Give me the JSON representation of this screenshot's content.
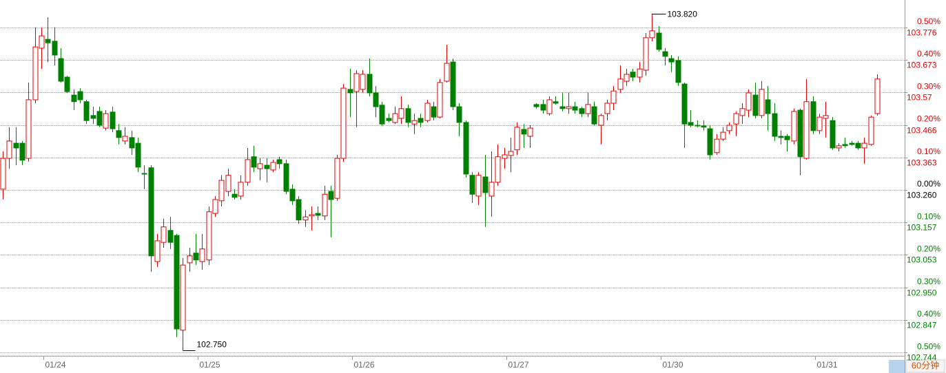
{
  "chart_data": {
    "type": "candlestick",
    "period": "60分钟",
    "high_label": "103.820",
    "low_label": "102.750",
    "up_color": "#e00000",
    "down_color": "#008000",
    "grid": true,
    "ylim": [
      102.737,
      103.863
    ],
    "yticks": [
      103.776,
      103.673,
      103.57,
      103.466,
      103.363,
      {
        "value": 103.26,
        "label": "103.260"
      },
      103.157,
      103.053,
      {
        "value": 102.95,
        "label": "102.950"
      },
      102.847,
      102.744
    ],
    "y2lim": [
      -0.506,
      0.584
    ],
    "y2ticks": [
      {
        "value": 0.5,
        "label": "0.50%"
      },
      {
        "value": 0.4,
        "label": "0.40%"
      },
      {
        "value": 0.3,
        "label": "0.30%"
      },
      {
        "value": 0.2,
        "label": "0.20%"
      },
      {
        "value": 0.1,
        "label": "0.10%"
      },
      {
        "value": 0,
        "label": "0.00%"
      },
      {
        "value": -0.1,
        "label": "0.10%"
      },
      {
        "value": -0.2,
        "label": "0.20%"
      },
      {
        "value": -0.3,
        "label": "0.30%"
      },
      {
        "value": -0.4,
        "label": "0.40%"
      },
      {
        "value": -0.5,
        "label": "0.50%"
      }
    ],
    "categories": [
      null,
      null,
      null,
      null,
      null,
      null,
      null,
      "01/24",
      null,
      null,
      null,
      null,
      null,
      null,
      null,
      null,
      null,
      null,
      null,
      null,
      null,
      null,
      null,
      null,
      null,
      null,
      null,
      null,
      null,
      null,
      null,
      "01/25",
      null,
      null,
      null,
      null,
      null,
      null,
      null,
      null,
      null,
      null,
      null,
      null,
      null,
      null,
      null,
      null,
      null,
      null,
      null,
      null,
      null,
      null,
      null,
      "01/26",
      null,
      null,
      null,
      null,
      null,
      null,
      null,
      null,
      null,
      null,
      null,
      null,
      null,
      null,
      null,
      null,
      null,
      null,
      null,
      null,
      null,
      null,
      null,
      "01/27",
      null,
      null,
      null,
      null,
      null,
      null,
      null,
      null,
      null,
      null,
      null,
      null,
      null,
      null,
      null,
      null,
      null,
      null,
      null,
      null,
      null,
      null,
      null,
      "01/30",
      null,
      null,
      null,
      null,
      null,
      null,
      null,
      null,
      null,
      null,
      null,
      null,
      null,
      null,
      null,
      null,
      null,
      null,
      null,
      null,
      null,
      null,
      null,
      "01/31",
      null,
      null,
      null,
      null,
      null,
      null,
      null,
      null,
      null
    ],
    "ohlc": [
      [
        103.262,
        103.382,
        103.229,
        103.36
      ],
      [
        103.36,
        103.459,
        103.327,
        103.415
      ],
      [
        103.408,
        103.459,
        103.338,
        103.393
      ],
      [
        103.408,
        103.415,
        103.338,
        103.354
      ],
      [
        103.36,
        103.601,
        103.349,
        103.546
      ],
      [
        103.546,
        103.776,
        103.535,
        103.714
      ],
      [
        103.71,
        103.776,
        103.644,
        103.749
      ],
      [
        103.738,
        103.808,
        103.666,
        103.727
      ],
      [
        103.732,
        103.776,
        103.655,
        103.688
      ],
      [
        103.677,
        103.71,
        103.601,
        103.605
      ],
      [
        103.618,
        103.622,
        103.568,
        103.572
      ],
      [
        103.561,
        103.579,
        103.513,
        103.54
      ],
      [
        103.572,
        103.583,
        103.535,
        103.546
      ],
      [
        103.54,
        103.546,
        103.469,
        103.48
      ],
      [
        103.496,
        103.524,
        103.469,
        103.487
      ],
      [
        103.509,
        103.524,
        103.459,
        103.465
      ],
      [
        103.456,
        103.513,
        103.448,
        103.502
      ],
      [
        103.507,
        103.524,
        103.443,
        103.454
      ],
      [
        103.448,
        103.469,
        103.404,
        103.426
      ],
      [
        103.415,
        103.459,
        103.404,
        103.43
      ],
      [
        103.426,
        103.448,
        103.371,
        103.393
      ],
      [
        103.408,
        103.426,
        103.316,
        103.332
      ],
      [
        103.312,
        103.338,
        103.262,
        103.31
      ],
      [
        103.33,
        103.338,
        102.999,
        103.05
      ],
      [
        103.032,
        103.12,
        103.015,
        103.098
      ],
      [
        103.093,
        103.168,
        103.076,
        103.142
      ],
      [
        103.131,
        103.174,
        103.072,
        103.093
      ],
      [
        103.115,
        103.12,
        102.792,
        102.818
      ],
      [
        102.814,
        103.043,
        102.75,
        103.021
      ],
      [
        103.028,
        103.076,
        102.999,
        103.05
      ],
      [
        103.059,
        103.12,
        103.021,
        103.037
      ],
      [
        103.032,
        103.12,
        103.006,
        103.072
      ],
      [
        103.037,
        103.207,
        103.021,
        103.19
      ],
      [
        103.185,
        103.24,
        103.174,
        103.229
      ],
      [
        103.225,
        103.306,
        103.207,
        103.29
      ],
      [
        103.255,
        103.327,
        103.24,
        103.306
      ],
      [
        103.246,
        103.262,
        103.229,
        103.236
      ],
      [
        103.24,
        103.306,
        103.229,
        103.284
      ],
      [
        103.284,
        103.393,
        103.273,
        103.356
      ],
      [
        103.365,
        103.4,
        103.316,
        103.332
      ],
      [
        103.327,
        103.36,
        103.29,
        103.343
      ],
      [
        103.338,
        103.36,
        103.284,
        103.327
      ],
      [
        103.323,
        103.356,
        103.316,
        103.347
      ],
      [
        103.356,
        103.365,
        103.327,
        103.343
      ],
      [
        103.343,
        103.356,
        103.246,
        103.255
      ],
      [
        103.262,
        103.277,
        103.212,
        103.225
      ],
      [
        103.229,
        103.24,
        103.152,
        103.164
      ],
      [
        103.164,
        103.196,
        103.142,
        103.174
      ],
      [
        103.177,
        103.207,
        103.131,
        103.181
      ],
      [
        103.185,
        103.207,
        103.164,
        103.179
      ],
      [
        103.177,
        103.273,
        103.164,
        103.246
      ],
      [
        103.255,
        103.273,
        103.109,
        103.229
      ],
      [
        103.233,
        103.371,
        103.225,
        103.36
      ],
      [
        103.36,
        103.596,
        103.349,
        103.583
      ],
      [
        103.579,
        103.644,
        103.491,
        103.568
      ],
      [
        103.572,
        103.64,
        103.459,
        103.629
      ],
      [
        103.579,
        103.64,
        103.568,
        103.627
      ],
      [
        103.627,
        103.677,
        103.557,
        103.568
      ],
      [
        103.568,
        103.59,
        103.491,
        103.524
      ],
      [
        103.529,
        103.54,
        103.463,
        103.469
      ],
      [
        103.487,
        103.502,
        103.474,
        103.48
      ],
      [
        103.474,
        103.524,
        103.469,
        103.502
      ],
      [
        103.487,
        103.557,
        103.469,
        103.518
      ],
      [
        103.518,
        103.531,
        103.459,
        103.474
      ],
      [
        103.469,
        103.502,
        103.437,
        103.48
      ],
      [
        103.487,
        103.502,
        103.459,
        103.474
      ],
      [
        103.48,
        103.546,
        103.474,
        103.535
      ],
      [
        103.524,
        103.54,
        103.48,
        103.491
      ],
      [
        103.491,
        103.612,
        103.487,
        103.601
      ],
      [
        103.605,
        103.721,
        103.601,
        103.662
      ],
      [
        103.666,
        103.677,
        103.513,
        103.524
      ],
      [
        103.524,
        103.535,
        103.43,
        103.474
      ],
      [
        103.474,
        103.48,
        103.299,
        103.31
      ],
      [
        103.306,
        103.316,
        103.218,
        103.246
      ],
      [
        103.24,
        103.316,
        103.212,
        103.306
      ],
      [
        103.301,
        103.371,
        103.142,
        103.251
      ],
      [
        103.24,
        103.382,
        103.174,
        103.284
      ],
      [
        103.284,
        103.404,
        103.273,
        103.365
      ],
      [
        103.36,
        103.393,
        103.327,
        103.371
      ],
      [
        103.369,
        103.426,
        103.316,
        103.382
      ],
      [
        103.387,
        103.474,
        103.371,
        103.459
      ],
      [
        103.452,
        103.469,
        103.393,
        103.437
      ],
      [
        103.43,
        103.465,
        103.393,
        103.456
      ],
      [
        103.531,
        103.535,
        103.518,
        103.524
      ],
      [
        103.531,
        103.546,
        103.502,
        103.513
      ],
      [
        103.502,
        103.557,
        103.496,
        103.546
      ],
      [
        103.54,
        103.557,
        103.531,
        103.535
      ],
      [
        103.524,
        103.568,
        103.509,
        103.518
      ],
      [
        103.518,
        103.568,
        103.502,
        103.524
      ],
      [
        103.524,
        103.54,
        103.502,
        103.513
      ],
      [
        103.518,
        103.524,
        103.491,
        103.502
      ],
      [
        103.502,
        103.568,
        103.491,
        103.531
      ],
      [
        103.524,
        103.54,
        103.465,
        103.469
      ],
      [
        103.465,
        103.502,
        103.404,
        103.496
      ],
      [
        103.502,
        103.546,
        103.48,
        103.535
      ],
      [
        103.535,
        103.59,
        103.513,
        103.574
      ],
      [
        103.579,
        103.655,
        103.568,
        103.612
      ],
      [
        103.605,
        103.644,
        103.59,
        103.627
      ],
      [
        103.634,
        103.644,
        103.605,
        103.618
      ],
      [
        103.618,
        103.666,
        103.601,
        103.644
      ],
      [
        103.64,
        103.758,
        103.622,
        103.743
      ],
      [
        103.743,
        103.82,
        103.732,
        103.765
      ],
      [
        103.758,
        103.78,
        103.699,
        103.706
      ],
      [
        103.699,
        103.71,
        103.655,
        103.684
      ],
      [
        103.677,
        103.688,
        103.634,
        103.666
      ],
      [
        103.671,
        103.684,
        103.59,
        103.601
      ],
      [
        103.596,
        103.601,
        103.393,
        103.469
      ],
      [
        103.474,
        103.513,
        103.459,
        103.465
      ],
      [
        103.465,
        103.48,
        103.459,
        103.463
      ],
      [
        103.463,
        103.48,
        103.448,
        103.459
      ],
      [
        103.454,
        103.465,
        103.356,
        103.371
      ],
      [
        103.378,
        103.437,
        103.371,
        103.421
      ],
      [
        103.421,
        103.459,
        103.415,
        103.443
      ],
      [
        103.448,
        103.474,
        103.437,
        103.465
      ],
      [
        103.469,
        103.509,
        103.43,
        103.502
      ],
      [
        103.496,
        103.535,
        103.469,
        103.518
      ],
      [
        103.513,
        103.579,
        103.491,
        103.568
      ],
      [
        103.561,
        103.601,
        103.487,
        103.496
      ],
      [
        103.496,
        103.605,
        103.487,
        103.579
      ],
      [
        103.546,
        103.59,
        103.448,
        103.502
      ],
      [
        103.502,
        103.535,
        103.415,
        103.43
      ],
      [
        103.43,
        103.448,
        103.404,
        103.426
      ],
      [
        103.43,
        103.437,
        103.382,
        103.419
      ],
      [
        103.415,
        103.518,
        103.404,
        103.509
      ],
      [
        103.513,
        103.518,
        103.306,
        103.365
      ],
      [
        103.36,
        103.612,
        103.356,
        103.54
      ],
      [
        103.54,
        103.557,
        103.437,
        103.448
      ],
      [
        103.448,
        103.502,
        103.437,
        103.491
      ],
      [
        103.487,
        103.54,
        103.426,
        103.496
      ],
      [
        103.48,
        103.491,
        103.387,
        103.393
      ],
      [
        103.393,
        103.408,
        103.382,
        103.4
      ],
      [
        103.404,
        103.426,
        103.393,
        103.4
      ],
      [
        103.408,
        103.415,
        103.4,
        103.404
      ],
      [
        103.408,
        103.415,
        103.387,
        103.393
      ],
      [
        103.393,
        103.426,
        103.343,
        103.408
      ],
      [
        103.404,
        103.496,
        103.4,
        103.491
      ],
      [
        103.502,
        103.627,
        103.496,
        103.612
      ]
    ]
  }
}
